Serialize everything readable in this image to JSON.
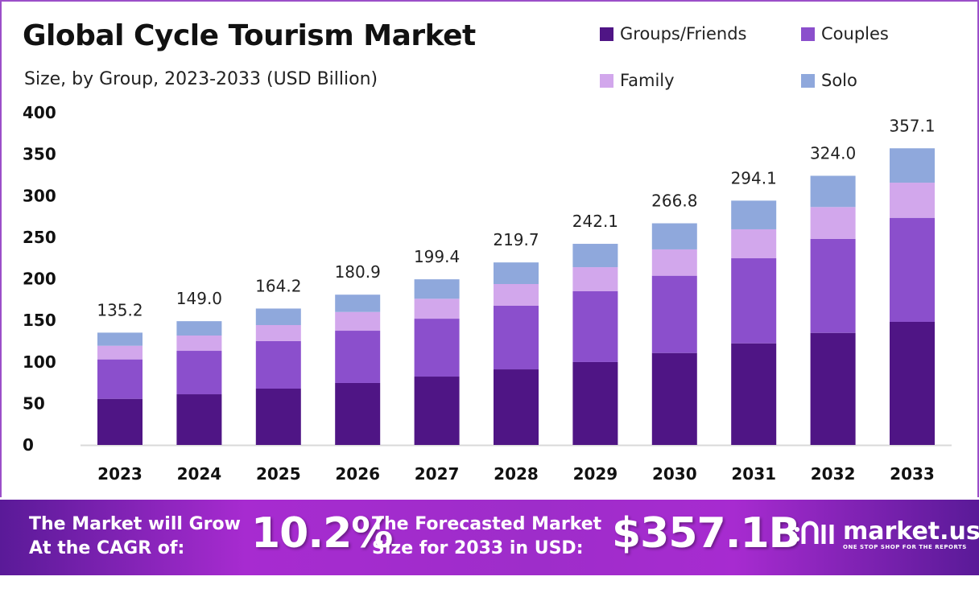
{
  "title": "Global Cycle Tourism Market",
  "subtitle": "Size, by Group, 2023-2033 (USD Billion)",
  "chart_data": {
    "type": "bar",
    "stacked": true,
    "categories": [
      "2023",
      "2024",
      "2025",
      "2026",
      "2027",
      "2028",
      "2029",
      "2030",
      "2031",
      "2032",
      "2033"
    ],
    "ylim": [
      0,
      400
    ],
    "yticks": [
      0,
      50,
      100,
      150,
      200,
      250,
      300,
      350,
      400
    ],
    "grid": false,
    "legend": "top-right",
    "series": [
      {
        "name": "Groups/Friends",
        "color": "#4f1585",
        "values": [
          55.5,
          61.0,
          67.8,
          74.6,
          82.3,
          91.0,
          99.8,
          110.7,
          122.3,
          134.9,
          148.2
        ]
      },
      {
        "name": "Couples",
        "color": "#8b4fcc",
        "values": [
          47.5,
          52.3,
          57.2,
          62.9,
          69.7,
          76.6,
          85.2,
          93.0,
          102.4,
          113.1,
          125.2
        ]
      },
      {
        "name": "Family",
        "color": "#d2a7ec",
        "values": [
          16.4,
          18.4,
          19.3,
          22.6,
          24.0,
          26.1,
          29.0,
          31.7,
          34.9,
          38.4,
          42.3
        ]
      },
      {
        "name": "Solo",
        "color": "#8fa8dc",
        "values": [
          15.8,
          17.3,
          19.9,
          20.8,
          23.4,
          26.0,
          28.1,
          31.4,
          34.5,
          37.6,
          41.4
        ]
      }
    ],
    "totals": [
      "135.2",
      "149.0",
      "164.2",
      "180.9",
      "199.4",
      "219.7",
      "242.1",
      "266.8",
      "294.1",
      "324.0",
      "357.1"
    ]
  },
  "banner": {
    "cagr_label_1": "The Market will Grow",
    "cagr_label_2": "At the CAGR of:",
    "cagr": "10.2%",
    "forecast_label_1": "The Forecasted Market",
    "forecast_label_2": "Size for 2033 in USD:",
    "forecast": "$357.1B",
    "brand": "market.us",
    "tagline": "ONE STOP SHOP FOR THE REPORTS"
  }
}
